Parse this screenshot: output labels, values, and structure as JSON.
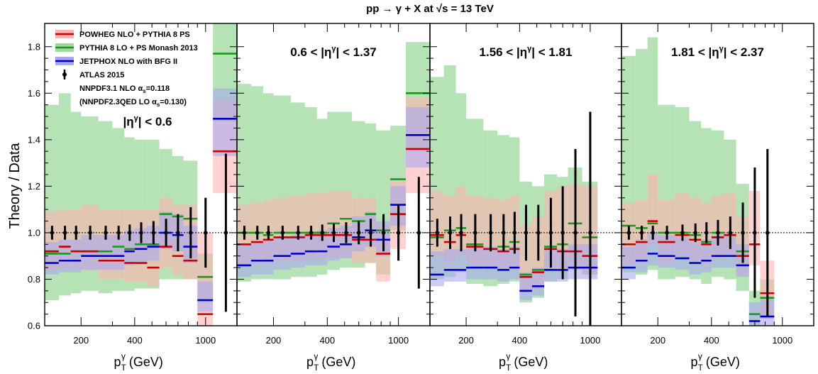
{
  "chart_data": {
    "type": "bar",
    "title": "pp → γ + X at √s = 13 TeV",
    "ylabel": "Theory / Data",
    "xlabel_main": "p",
    "xlabel_sub": "T",
    "xlabel_sup": "γ",
    "xlabel_unit": " (GeV)",
    "ylim": [
      0.6,
      1.9
    ],
    "xlim": [
      125,
      1500
    ],
    "x_scale": "log",
    "y_ticks": [
      "0.6",
      "0.8",
      "1.0",
      "1.2",
      "1.4",
      "1.6",
      "1.8"
    ],
    "x_ticks": [
      "200",
      "400",
      "1000"
    ],
    "reference_line": 1.0,
    "legend": {
      "entries": [
        {
          "label": "POWHEG NLO + PYTHIA 8 PS",
          "color": "#cc0000",
          "band": "#ffb3b3"
        },
        {
          "label": "PYTHIA 8 LO + PS Monash 2013",
          "color": "#1a9a1a",
          "band": "#9ed99e"
        },
        {
          "label": "JETPHOX NLO with BFG II",
          "color": "#0000cc",
          "band": "#a8a8ee"
        },
        {
          "label": "ATLAS 2015",
          "color": "#000000",
          "band": ""
        }
      ],
      "note1_prefix": "NNPDF3.1 NLO  α",
      "note1_sub": "s",
      "note1_suffix": "=0.118",
      "note2_prefix": "(NNPDF2.3QED LO  α",
      "note2_sub": "s",
      "note2_suffix": "=0.130)"
    },
    "panels": [
      {
        "label_pre": "|η",
        "label_sup": "γ",
        "label_post": "| < 0.6",
        "bins": [
          125,
          150,
          175,
          200,
          250,
          300,
          350,
          400,
          470,
          550,
          650,
          750,
          900,
          1100,
          1500
        ],
        "data_x": [
          137.5,
          162.5,
          187.5,
          225,
          275,
          325,
          375,
          435,
          510,
          600,
          700,
          825,
          1000,
          1300
        ],
        "data_err": [
          0.03,
          0.03,
          0.03,
          0.03,
          0.03,
          0.03,
          0.035,
          0.045,
          0.05,
          0.06,
          0.08,
          0.11,
          0.15,
          0.34
        ],
        "powheg": [
          0.92,
          0.94,
          0.92,
          0.92,
          0.88,
          0.88,
          0.87,
          0.87,
          0.85,
          0.94,
          0.9,
          0.88,
          0.65,
          1.35
        ],
        "powheg_band": [
          [
            0.84,
            1.09
          ],
          [
            0.85,
            1.1
          ],
          [
            0.84,
            1.1
          ],
          [
            0.84,
            1.12
          ],
          [
            0.8,
            1.1
          ],
          [
            0.8,
            1.1
          ],
          [
            0.79,
            1.1
          ],
          [
            0.79,
            1.1
          ],
          [
            0.77,
            1.1
          ],
          [
            0.85,
            1.15
          ],
          [
            0.82,
            1.12
          ],
          [
            0.8,
            1.12
          ],
          [
            0.6,
            1.0
          ],
          [
            1.17,
            1.57
          ]
        ],
        "pythia": [
          0.91,
          0.91,
          0.92,
          0.92,
          0.92,
          0.94,
          0.93,
          0.95,
          0.95,
          1.08,
          1.07,
          1.06,
          0.81,
          1.77
        ],
        "pythia_band": [
          [
            0.71,
            1.55
          ],
          [
            0.73,
            1.6
          ],
          [
            0.74,
            1.52
          ],
          [
            0.75,
            1.5
          ],
          [
            0.74,
            1.48
          ],
          [
            0.75,
            1.45
          ],
          [
            0.75,
            1.41
          ],
          [
            0.76,
            1.4
          ],
          [
            0.76,
            1.4
          ],
          [
            0.8,
            1.36
          ],
          [
            0.8,
            1.33
          ],
          [
            0.8,
            1.31
          ],
          [
            0.7,
            0.91
          ],
          [
            1.48,
            1.9
          ]
        ],
        "jetphox": [
          0.87,
          0.88,
          0.88,
          0.9,
          0.9,
          0.9,
          0.92,
          0.93,
          0.94,
          1.0,
          0.99,
          0.94,
          0.71,
          1.49
        ],
        "jetphox_band": [
          [
            0.82,
            0.96
          ],
          [
            0.83,
            0.97
          ],
          [
            0.83,
            0.97
          ],
          [
            0.84,
            0.99
          ],
          [
            0.84,
            0.99
          ],
          [
            0.84,
            0.99
          ],
          [
            0.86,
            1.01
          ],
          [
            0.87,
            1.02
          ],
          [
            0.88,
            1.03
          ],
          [
            0.93,
            1.09
          ],
          [
            0.92,
            1.08
          ],
          [
            0.87,
            1.03
          ],
          [
            0.66,
            0.79
          ],
          [
            1.33,
            1.62
          ]
        ]
      },
      {
        "label_pre": "0.6 < |η",
        "label_sup": "γ",
        "label_post": "| < 1.37",
        "bins": [
          125,
          150,
          175,
          200,
          250,
          300,
          350,
          400,
          470,
          550,
          650,
          750,
          900,
          1100,
          1500
        ],
        "data_x": [
          137.5,
          162.5,
          187.5,
          225,
          275,
          325,
          375,
          435,
          510,
          600,
          700,
          825,
          1000,
          1300
        ],
        "data_err": [
          0.03,
          0.03,
          0.03,
          0.03,
          0.03,
          0.03,
          0.035,
          0.04,
          0.045,
          0.05,
          0.06,
          0.08,
          0.12,
          0.24
        ],
        "powheg": [
          0.95,
          0.96,
          0.97,
          0.98,
          0.98,
          0.99,
          0.99,
          0.99,
          0.99,
          0.97,
          0.97,
          0.91,
          1.08,
          1.36
        ],
        "powheg_band": [
          [
            0.86,
            1.12
          ],
          [
            0.87,
            1.13
          ],
          [
            0.87,
            1.14
          ],
          [
            0.88,
            1.15
          ],
          [
            0.88,
            1.16
          ],
          [
            0.89,
            1.17
          ],
          [
            0.89,
            1.17
          ],
          [
            0.89,
            1.18
          ],
          [
            0.89,
            1.18
          ],
          [
            0.87,
            1.15
          ],
          [
            0.87,
            1.15
          ],
          [
            0.79,
            1.03
          ],
          [
            0.93,
            1.22
          ],
          [
            1.17,
            1.58
          ]
        ],
        "pythia": [
          1.0,
          1.0,
          0.99,
          1.0,
          1.0,
          1.0,
          1.0,
          1.04,
          1.06,
          1.05,
          1.08,
          1.01,
          1.23,
          1.6
        ],
        "pythia_band": [
          [
            0.79,
            1.64
          ],
          [
            0.8,
            1.63
          ],
          [
            0.8,
            1.6
          ],
          [
            0.8,
            1.59
          ],
          [
            0.81,
            1.56
          ],
          [
            0.81,
            1.54
          ],
          [
            0.82,
            1.49
          ],
          [
            0.84,
            1.52
          ],
          [
            0.85,
            1.52
          ],
          [
            0.85,
            1.48
          ],
          [
            0.87,
            1.47
          ],
          [
            0.82,
            1.44
          ],
          [
            1.01,
            1.46
          ],
          [
            1.36,
            1.82
          ]
        ],
        "jetphox": [
          0.86,
          0.88,
          0.88,
          0.9,
          0.91,
          0.92,
          0.92,
          0.94,
          0.95,
          0.98,
          1.01,
          0.97,
          1.12,
          1.42
        ],
        "jetphox_band": [
          [
            0.81,
            0.95
          ],
          [
            0.82,
            0.96
          ],
          [
            0.82,
            0.97
          ],
          [
            0.84,
            0.98
          ],
          [
            0.85,
            0.99
          ],
          [
            0.86,
            1.0
          ],
          [
            0.86,
            1.01
          ],
          [
            0.88,
            1.02
          ],
          [
            0.89,
            1.03
          ],
          [
            0.92,
            1.07
          ],
          [
            0.94,
            1.09
          ],
          [
            0.9,
            1.05
          ],
          [
            1.03,
            1.2
          ],
          [
            1.28,
            1.54
          ]
        ]
      },
      {
        "label_pre": "1.56 < |η",
        "label_sup": "γ",
        "label_post": "| < 1.81",
        "bins": [
          125,
          150,
          175,
          200,
          250,
          300,
          350,
          400,
          470,
          550,
          650,
          750,
          900,
          1100,
          1500
        ],
        "data_x": [
          137.5,
          162.5,
          187.5,
          225,
          275,
          325,
          375,
          435,
          510,
          600,
          700,
          825,
          1000
        ],
        "data_err": [
          0.06,
          0.07,
          0.08,
          0.08,
          0.08,
          0.08,
          0.09,
          0.12,
          0.12,
          0.15,
          0.2,
          0.36,
          0.52
        ],
        "powheg": [
          0.99,
          0.96,
          0.99,
          0.94,
          0.93,
          0.92,
          0.93,
          0.81,
          0.83,
          0.93,
          0.92,
          0.92,
          0.9
        ],
        "powheg_band": [
          [
            0.9,
            1.18
          ],
          [
            0.87,
            1.16
          ],
          [
            0.9,
            1.2
          ],
          [
            0.86,
            1.16
          ],
          [
            0.85,
            1.15
          ],
          [
            0.84,
            1.14
          ],
          [
            0.85,
            1.16
          ],
          [
            0.74,
            1.03
          ],
          [
            0.76,
            1.07
          ],
          [
            0.85,
            1.18
          ],
          [
            0.84,
            1.2
          ],
          [
            0.84,
            1.21
          ],
          [
            0.82,
            1.2
          ]
        ],
        "pythia": [
          0.98,
          1.01,
          1.02,
          0.95,
          0.93,
          0.94,
          0.96,
          0.82,
          0.84,
          0.94,
          0.95,
          1.04,
          0.98
        ],
        "pythia_band": [
          [
            0.8,
            1.67
          ],
          [
            0.81,
            1.72
          ],
          [
            0.83,
            1.6
          ],
          [
            0.78,
            1.49
          ],
          [
            0.77,
            1.44
          ],
          [
            0.78,
            1.42
          ],
          [
            0.79,
            1.41
          ],
          [
            0.7,
            1.22
          ],
          [
            0.72,
            1.2
          ],
          [
            0.79,
            1.25
          ],
          [
            0.8,
            1.24
          ],
          [
            0.86,
            1.28
          ],
          [
            0.82,
            1.22
          ]
        ],
        "jetphox": [
          0.82,
          0.84,
          0.84,
          0.85,
          0.85,
          0.84,
          0.85,
          0.75,
          0.77,
          0.84,
          0.84,
          0.85,
          0.85
        ],
        "jetphox_band": [
          [
            0.77,
            0.92
          ],
          [
            0.79,
            0.93
          ],
          [
            0.79,
            0.93
          ],
          [
            0.8,
            0.94
          ],
          [
            0.8,
            0.94
          ],
          [
            0.79,
            0.93
          ],
          [
            0.8,
            0.94
          ],
          [
            0.71,
            0.83
          ],
          [
            0.73,
            0.85
          ],
          [
            0.79,
            0.93
          ],
          [
            0.79,
            0.93
          ],
          [
            0.8,
            0.95
          ],
          [
            0.8,
            0.95
          ]
        ]
      },
      {
        "label_pre": "1.81 < |η",
        "label_sup": "γ",
        "label_post": "| < 2.37",
        "bins": [
          125,
          150,
          175,
          200,
          250,
          300,
          350,
          400,
          470,
          550,
          650,
          750,
          900
        ],
        "data_x": [
          137.5,
          162.5,
          187.5,
          225,
          275,
          325,
          375,
          435,
          510,
          600,
          700,
          825
        ],
        "data_err": [
          0.03,
          0.03,
          0.03,
          0.03,
          0.035,
          0.04,
          0.045,
          0.055,
          0.07,
          0.13,
          0.28,
          0.36
        ],
        "powheg": [
          0.95,
          0.96,
          1.05,
          0.96,
          0.99,
          0.97,
          0.95,
          0.98,
          0.99,
          0.9,
          0.95,
          0.74
        ],
        "powheg_band": [
          [
            0.86,
            1.13
          ],
          [
            0.87,
            1.14
          ],
          [
            0.95,
            1.25
          ],
          [
            0.87,
            1.14
          ],
          [
            0.9,
            1.17
          ],
          [
            0.88,
            1.15
          ],
          [
            0.86,
            1.13
          ],
          [
            0.89,
            1.16
          ],
          [
            0.9,
            1.17
          ],
          [
            0.82,
            1.07
          ],
          [
            0.86,
            1.18
          ],
          [
            0.63,
            0.88
          ]
        ],
        "pythia": [
          1.03,
          1.02,
          1.04,
          1.0,
          1.0,
          0.99,
          0.96,
          1.0,
          0.99,
          0.92,
          0.65,
          0.72
        ],
        "pythia_band": [
          [
            0.83,
            1.76
          ],
          [
            0.82,
            1.79
          ],
          [
            0.84,
            1.84
          ],
          [
            0.8,
            1.55
          ],
          [
            0.81,
            1.54
          ],
          [
            0.8,
            1.48
          ],
          [
            0.78,
            1.45
          ],
          [
            0.81,
            1.44
          ],
          [
            0.8,
            1.4
          ],
          [
            0.75,
            1.21
          ],
          [
            0.6,
            0.75
          ],
          [
            0.63,
            0.8
          ]
        ],
        "jetphox": [
          0.85,
          0.88,
          0.91,
          0.9,
          0.89,
          0.87,
          0.88,
          0.9,
          0.9,
          0.86,
          0.62,
          0.64
        ],
        "jetphox_band": [
          [
            0.8,
            0.94
          ],
          [
            0.83,
            0.97
          ],
          [
            0.86,
            1.0
          ],
          [
            0.85,
            0.99
          ],
          [
            0.84,
            0.98
          ],
          [
            0.82,
            0.96
          ],
          [
            0.83,
            0.97
          ],
          [
            0.85,
            0.99
          ],
          [
            0.85,
            0.99
          ],
          [
            0.81,
            0.95
          ],
          [
            0.59,
            0.7
          ],
          [
            0.6,
            0.72
          ]
        ]
      }
    ]
  }
}
